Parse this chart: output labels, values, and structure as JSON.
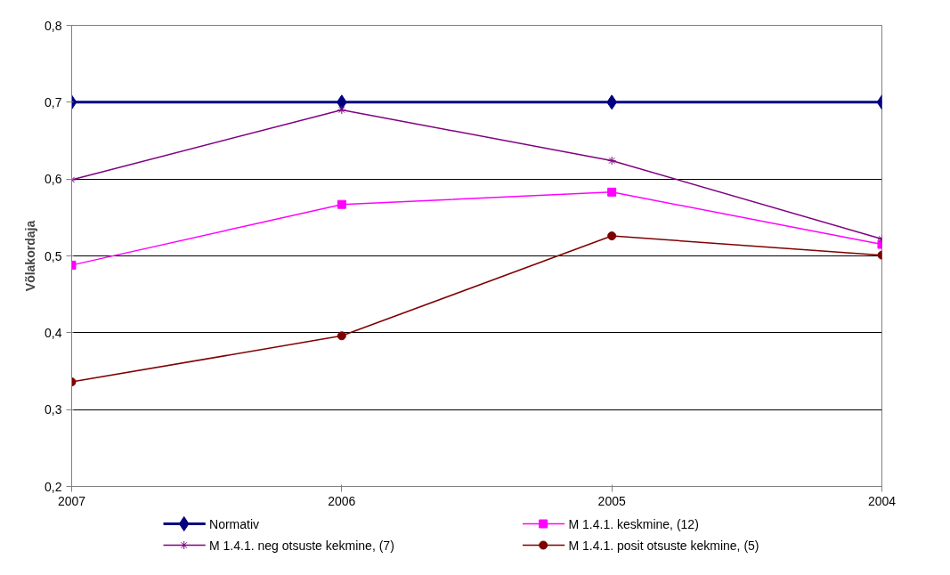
{
  "chart_data": {
    "type": "line",
    "ylabel": "Võlakordaja",
    "categories": [
      "2007",
      "2006",
      "2005",
      "2004"
    ],
    "ylim": [
      0.2,
      0.8
    ],
    "yticks": [
      {
        "value": 0.2,
        "label": "0,2"
      },
      {
        "value": 0.3,
        "label": "0,3"
      },
      {
        "value": 0.4,
        "label": "0,4"
      },
      {
        "value": 0.5,
        "label": "0,5"
      },
      {
        "value": 0.6,
        "label": "0,6"
      },
      {
        "value": 0.7,
        "label": "0,7"
      },
      {
        "value": 0.8,
        "label": "0,8"
      }
    ],
    "grid": "y",
    "legend": "bottom",
    "series": [
      {
        "name": "Normativ",
        "color": "#000080",
        "marker": "diamond",
        "values": [
          0.7,
          0.7,
          0.7,
          0.7
        ]
      },
      {
        "name": "M 1.4.1. keskmine, (12)",
        "color": "#ff00ff",
        "marker": "square",
        "values": [
          0.488,
          0.567,
          0.583,
          0.515
        ]
      },
      {
        "name": "M 1.4.1. neg otsuste kekmine, (7)",
        "color": "#800080",
        "marker": "cross",
        "values": [
          0.599,
          0.69,
          0.624,
          0.522
        ]
      },
      {
        "name": "M 1.4.1. posit otsuste  kekmine, (5)",
        "color": "#800000",
        "marker": "circle",
        "values": [
          0.336,
          0.396,
          0.526,
          0.501
        ]
      }
    ]
  }
}
